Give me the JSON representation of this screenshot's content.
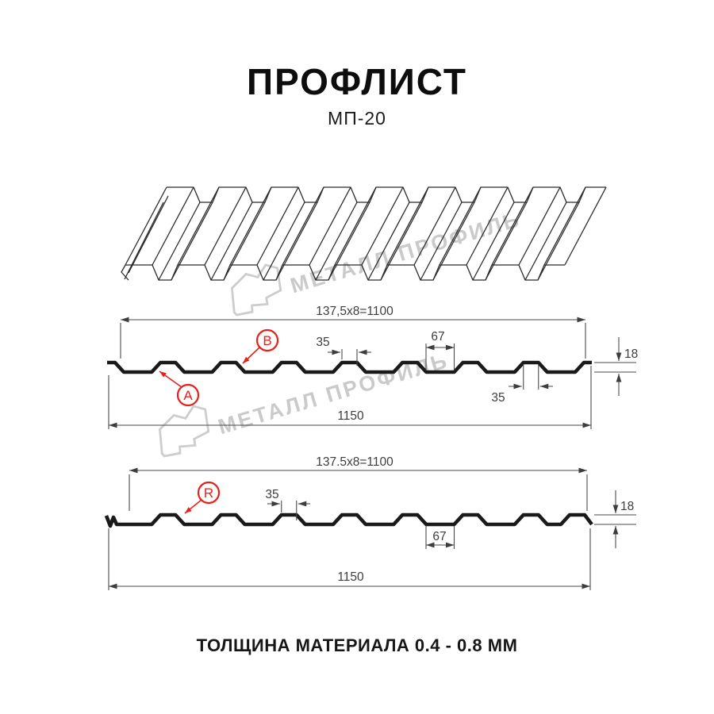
{
  "title": "ПРОФЛИСТ",
  "subtitle": "МП-20",
  "footer": "ТОЛЩИНА МАТЕРИАЛА 0.4 - 0.8 ММ",
  "watermark": {
    "text": "МЕТАЛЛ ПРОФИЛЬ",
    "color": "#cacaca"
  },
  "colors": {
    "profile_line": "#1a1a1a",
    "dimension_line": "#4a4a4a",
    "accent_red": "#e8201a",
    "sketch_line": "#2b2b2b"
  },
  "section_a": {
    "pitch_formula": "137,5x8=1100",
    "crest_top_width": "35",
    "valley_width": "67",
    "height": "18",
    "crest_bottom_width": "35",
    "overall_width": "1150",
    "label_a": "A",
    "label_b": "B"
  },
  "section_b": {
    "pitch_formula": "137.5x8=1100",
    "crest_top_width": "35",
    "valley_width": "67",
    "height": "18",
    "overall_width": "1150",
    "label_r": "R"
  }
}
